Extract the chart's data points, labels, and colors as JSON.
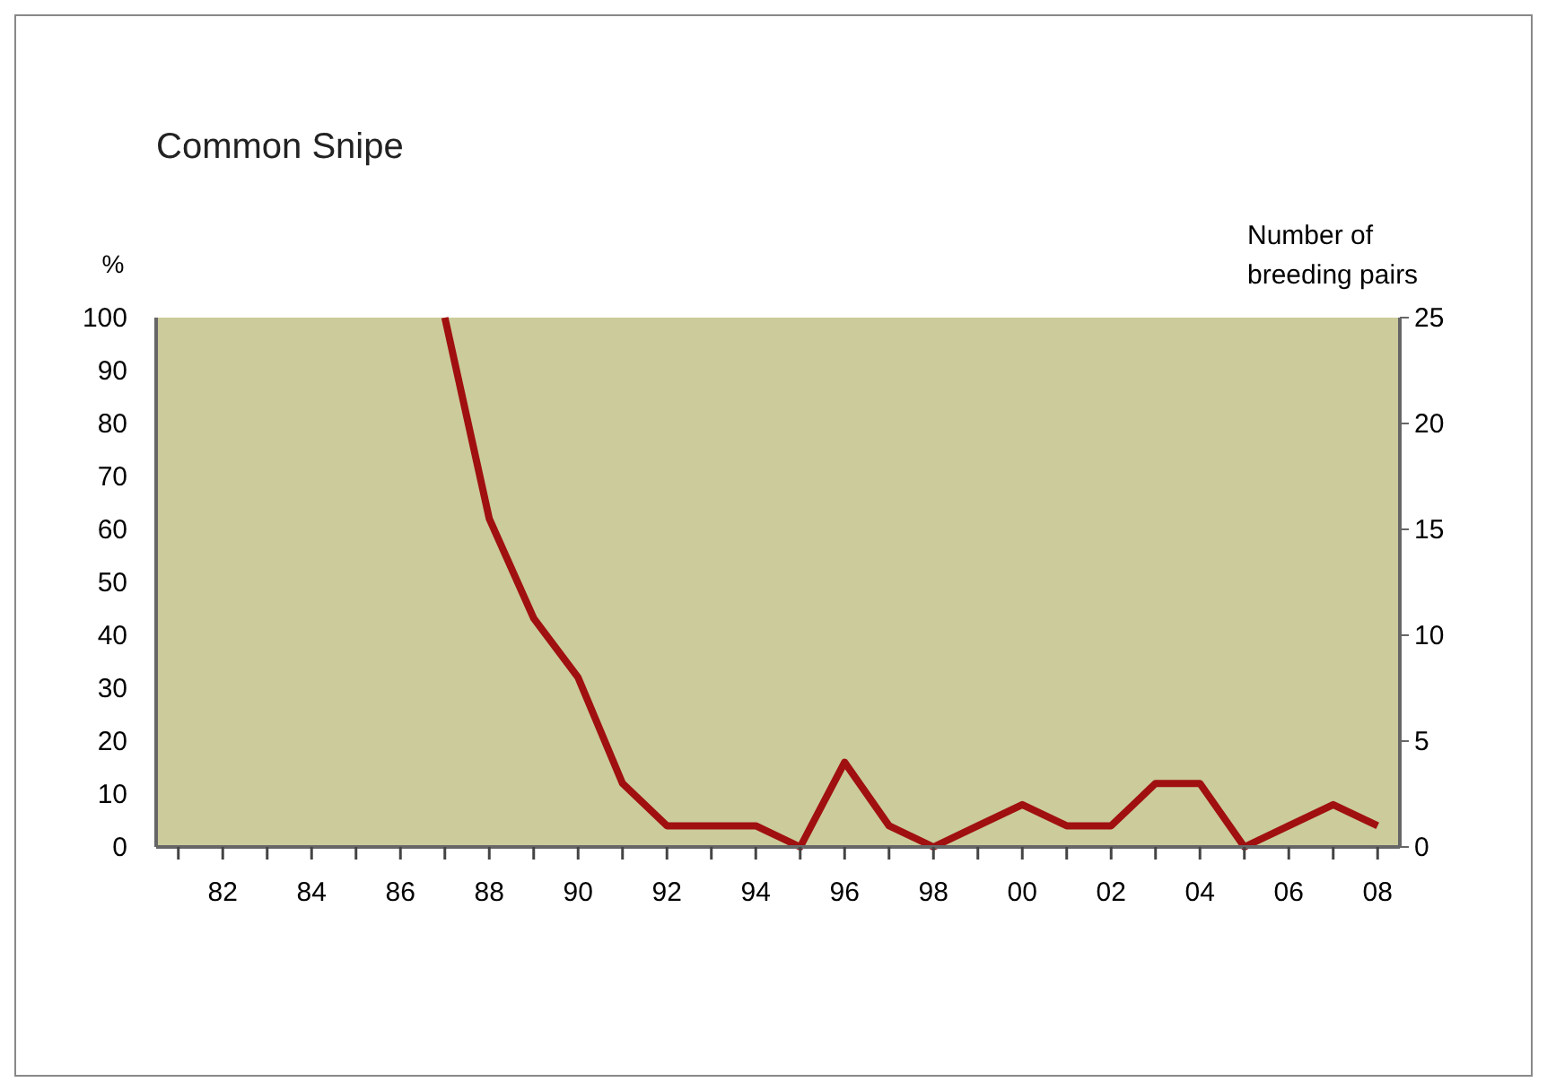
{
  "chart_data": {
    "type": "line",
    "title": "Common Snipe",
    "ylabel": "%",
    "y2label": "Number of breeding pairs",
    "x": [
      1987,
      1988,
      1989,
      1990,
      1991,
      1992,
      1993,
      1994,
      1995,
      1996,
      1997,
      1998,
      1999,
      2000,
      2001,
      2002,
      2003,
      2004,
      2005,
      2006,
      2007,
      2008
    ],
    "series": [
      {
        "color": "#a01010",
        "axis": "y2",
        "values": [
          25,
          15.5,
          10.8,
          8,
          3,
          1,
          1,
          1,
          0,
          4,
          1,
          0,
          1,
          2,
          1,
          1,
          3,
          3,
          0,
          1,
          2,
          1
        ]
      }
    ],
    "xlim": [
      1980.5,
      2008.5
    ],
    "xticks": [
      {
        "value": 1981,
        "label": null
      },
      {
        "value": 1982,
        "label": "82"
      },
      {
        "value": 1983,
        "label": null
      },
      {
        "value": 1984,
        "label": "84"
      },
      {
        "value": 1985,
        "label": null
      },
      {
        "value": 1986,
        "label": "86"
      },
      {
        "value": 1987,
        "label": null
      },
      {
        "value": 1988,
        "label": "88"
      },
      {
        "value": 1989,
        "label": null
      },
      {
        "value": 1990,
        "label": "90"
      },
      {
        "value": 1991,
        "label": null
      },
      {
        "value": 1992,
        "label": "92"
      },
      {
        "value": 1993,
        "label": null
      },
      {
        "value": 1994,
        "label": "94"
      },
      {
        "value": 1995,
        "label": null
      },
      {
        "value": 1996,
        "label": "96"
      },
      {
        "value": 1997,
        "label": null
      },
      {
        "value": 1998,
        "label": "98"
      },
      {
        "value": 1999,
        "label": null
      },
      {
        "value": 2000,
        "label": "00"
      },
      {
        "value": 2001,
        "label": null
      },
      {
        "value": 2002,
        "label": "02"
      },
      {
        "value": 2003,
        "label": null
      },
      {
        "value": 2004,
        "label": "04"
      },
      {
        "value": 2005,
        "label": null
      },
      {
        "value": 2006,
        "label": "06"
      },
      {
        "value": 2007,
        "label": null
      },
      {
        "value": 2008,
        "label": "08"
      }
    ],
    "ylim": [
      0,
      100
    ],
    "yticks": [
      0,
      10,
      20,
      30,
      40,
      50,
      60,
      70,
      80,
      90,
      100
    ],
    "y2lim": [
      0,
      25
    ],
    "y2ticks": [
      0,
      5,
      10,
      15,
      20,
      25
    ],
    "grid": false,
    "marker": "none",
    "line_style": "solid"
  }
}
